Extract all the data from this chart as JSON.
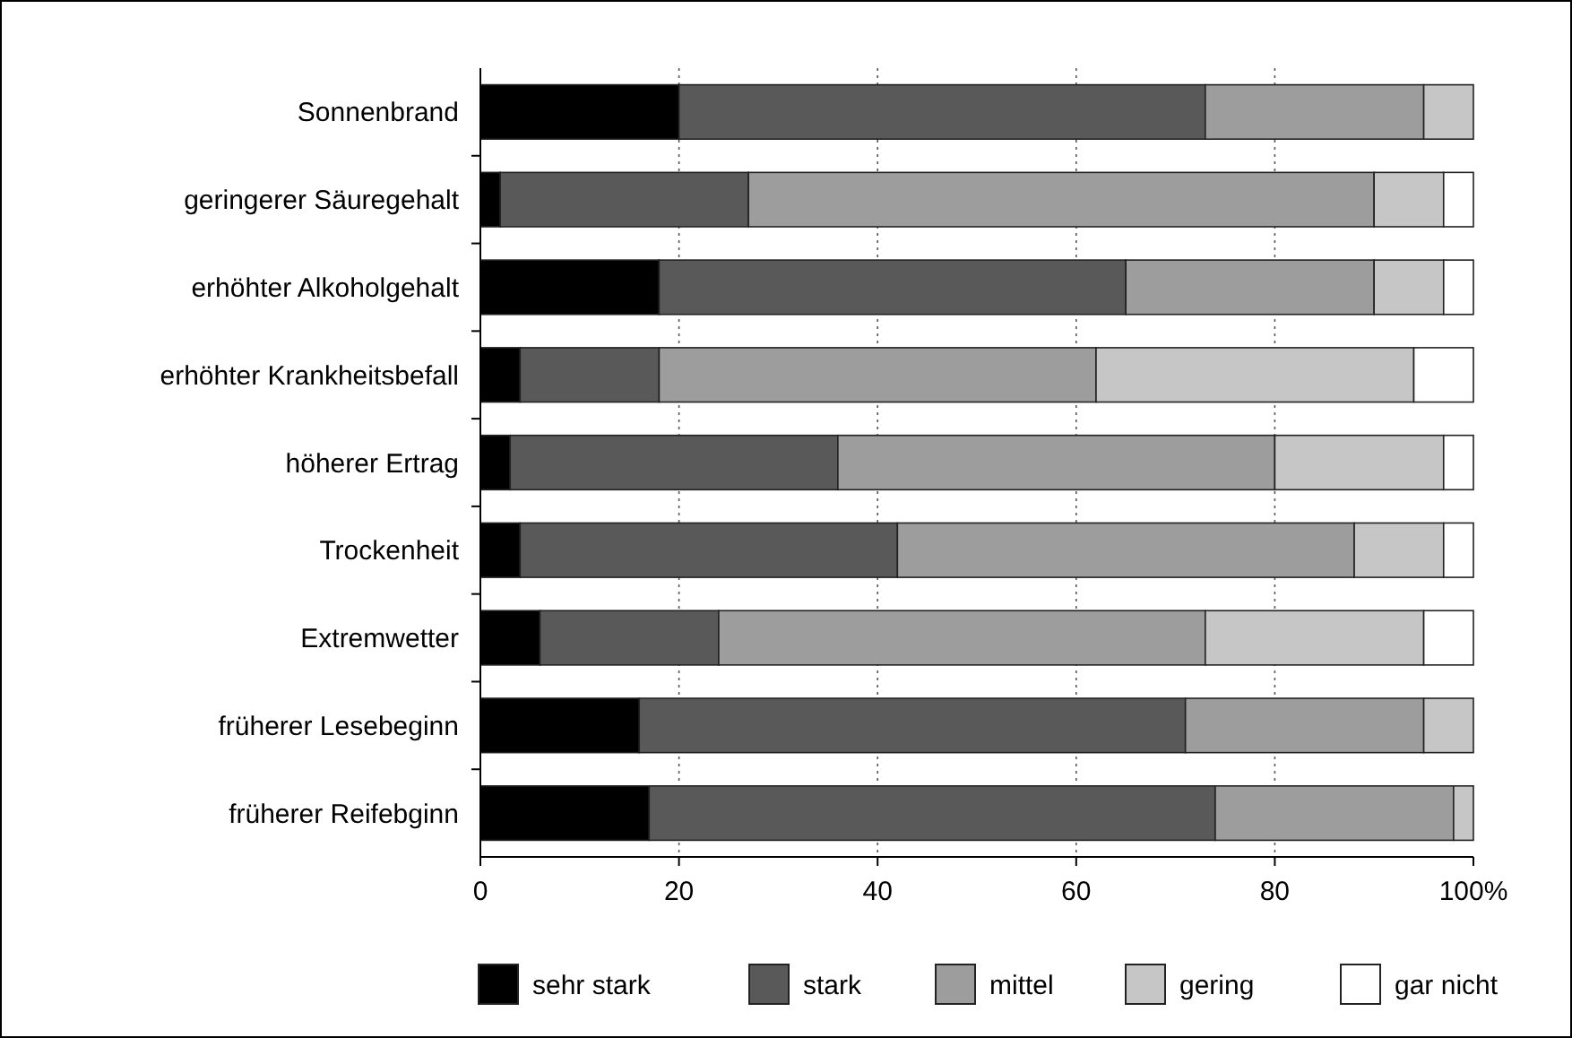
{
  "chart_data": {
    "type": "bar",
    "orientation": "horizontal",
    "stacked": true,
    "categories": [
      "Sonnenbrand",
      "geringerer Säuregehalt",
      "erhöhter Alkoholgehalt",
      "erhöhter Krankheitsbefall",
      "höherer Ertrag",
      "Trockenheit",
      "Extremwetter",
      "früherer Lesebeginn",
      "früherer Reifebginn"
    ],
    "series": [
      {
        "name": "sehr stark",
        "color": "#000000",
        "values": [
          20,
          2,
          18,
          4,
          3,
          4,
          6,
          16,
          17
        ]
      },
      {
        "name": "stark",
        "color": "#595959",
        "values": [
          53,
          25,
          47,
          14,
          33,
          38,
          18,
          55,
          57
        ]
      },
      {
        "name": "mittel",
        "color": "#9d9d9d",
        "values": [
          22,
          63,
          25,
          44,
          44,
          46,
          49,
          24,
          24
        ]
      },
      {
        "name": "gering",
        "color": "#c6c6c6",
        "values": [
          5,
          7,
          7,
          32,
          17,
          9,
          22,
          5,
          2
        ]
      },
      {
        "name": "gar nicht",
        "color": "#ffffff",
        "values": [
          0,
          3,
          3,
          6,
          3,
          3,
          5,
          0,
          0
        ]
      }
    ],
    "xlim": [
      0,
      100
    ],
    "xticks": [
      0,
      20,
      40,
      60,
      80,
      {
        "value": 100,
        "label": "100%"
      }
    ],
    "grid": "x",
    "legend": "bottom"
  }
}
